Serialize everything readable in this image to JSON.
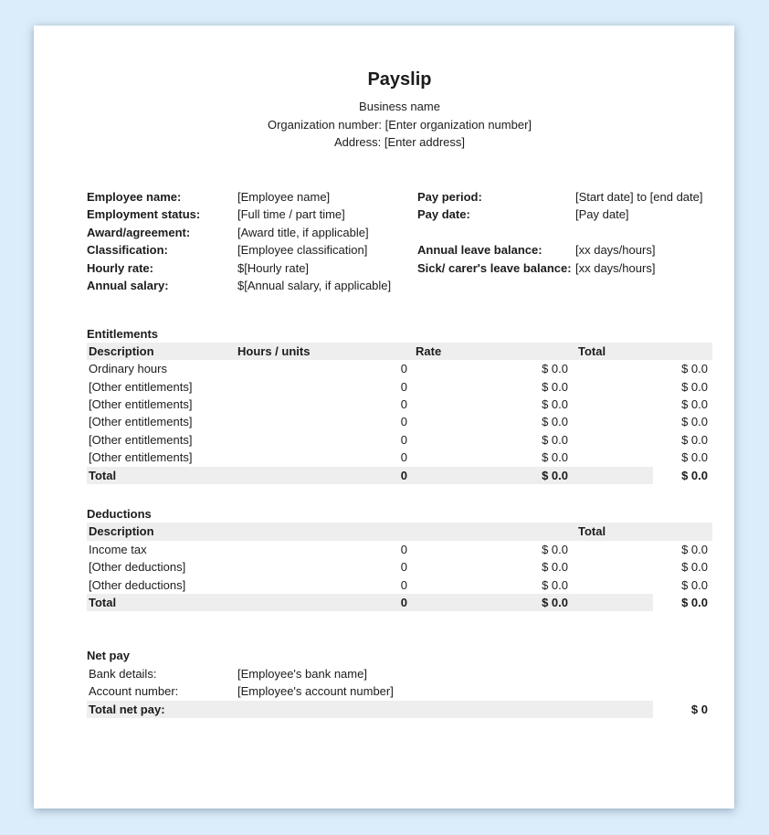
{
  "colors": {
    "canvas_bg": "#dbecfa",
    "page_bg": "#ffffff",
    "band_bg": "#eeeeee"
  },
  "header": {
    "title": "Payslip",
    "business_name": "Business name",
    "organization_line": "Organization number: [Enter organization number]",
    "address_line": "Address: [Enter address]"
  },
  "employee": {
    "left": [
      {
        "label": "Employee name:",
        "value": "[Employee name]"
      },
      {
        "label": "Employment status:",
        "value": "[Full time / part time]"
      },
      {
        "label": "Award/agreement:",
        "value": "[Award title, if applicable]"
      },
      {
        "label": "Classification:",
        "value": "[Employee classification]"
      },
      {
        "label": "Hourly rate:",
        "value": "$[Hourly rate]"
      },
      {
        "label": "Annual salary:",
        "value": "$[Annual salary, if applicable]"
      }
    ],
    "right": [
      {
        "label": "Pay period:",
        "value": "[Start date] to [end date]"
      },
      {
        "label": "Pay date:",
        "value": "[Pay date]"
      },
      {
        "label": "Annual leave balance:",
        "value": "[xx days/hours]"
      },
      {
        "label": "Sick/ carer's leave balance:",
        "value": "[xx days/hours]"
      }
    ]
  },
  "entitlements": {
    "heading": "Entitlements",
    "columns": {
      "description": "Description",
      "hours_units": "Hours / units",
      "rate": "Rate",
      "total": "Total"
    },
    "rows": [
      {
        "description": "Ordinary hours",
        "hours": "0",
        "rate": "$ 0.0",
        "total": "$ 0.0"
      },
      {
        "description": "[Other entitlements]",
        "hours": "0",
        "rate": "$ 0.0",
        "total": "$ 0.0"
      },
      {
        "description": "[Other entitlements]",
        "hours": "0",
        "rate": "$ 0.0",
        "total": "$ 0.0"
      },
      {
        "description": "[Other entitlements]",
        "hours": "0",
        "rate": "$ 0.0",
        "total": "$ 0.0"
      },
      {
        "description": "[Other entitlements]",
        "hours": "0",
        "rate": "$ 0.0",
        "total": "$ 0.0"
      },
      {
        "description": "[Other entitlements]",
        "hours": "0",
        "rate": "$ 0.0",
        "total": "$ 0.0"
      }
    ],
    "total": {
      "label": "Total",
      "hours": "0",
      "rate": "$ 0.0",
      "total": "$ 0.0"
    }
  },
  "deductions": {
    "heading": "Deductions",
    "columns": {
      "description": "Description",
      "total": "Total"
    },
    "rows": [
      {
        "description": "Income tax",
        "hours": "0",
        "rate": "$ 0.0",
        "total": "$ 0.0"
      },
      {
        "description": "[Other deductions]",
        "hours": "0",
        "rate": "$ 0.0",
        "total": "$ 0.0"
      },
      {
        "description": "[Other deductions]",
        "hours": "0",
        "rate": "$ 0.0",
        "total": "$ 0.0"
      }
    ],
    "total": {
      "label": "Total",
      "hours": "0",
      "rate": "$ 0.0",
      "total": "$ 0.0"
    }
  },
  "net_pay": {
    "heading": "Net pay",
    "rows": [
      {
        "label": "Bank details:",
        "value": "[Employee's bank name]"
      },
      {
        "label": "Account number:",
        "value": "[Employee's account number]"
      }
    ],
    "total_label": "Total net pay:",
    "total_value": "$ 0"
  }
}
